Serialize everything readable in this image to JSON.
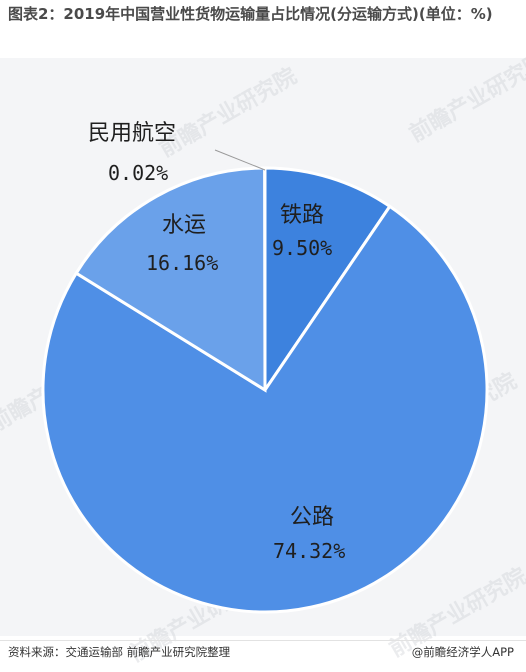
{
  "title": "图表2：2019年中国营业性货物运输量占比情况(分运输方式)(单位：%)",
  "chart_data": {
    "type": "pie",
    "title": "图表2：2019年中国营业性货物运输量占比情况(分运输方式)(单位：%)",
    "slices": [
      {
        "label": "铁路",
        "value": 9.5,
        "value_text": "9.50%",
        "color": "#3d82de"
      },
      {
        "label": "公路",
        "value": 74.32,
        "value_text": "74.32%",
        "color": "#4f8fe6"
      },
      {
        "label": "水运",
        "value": 16.16,
        "value_text": "16.16%",
        "color": "#6aa1ea"
      },
      {
        "label": "民用航空",
        "value": 0.02,
        "value_text": "0.02%",
        "color": "#8db7ef"
      }
    ],
    "start": "12 o'clock",
    "direction": "clockwise",
    "legend": "none"
  },
  "watermark": "前瞻产业研究院",
  "footer": {
    "source": "资料来源：交通运输部 前瞻产业研究院整理",
    "brand": "@前瞻经济学人APP"
  }
}
